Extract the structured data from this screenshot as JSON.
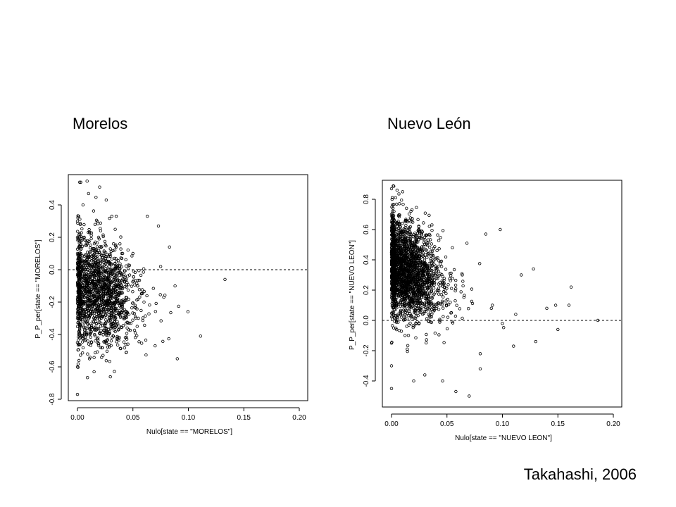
{
  "slide": {
    "title_left": "Morelos",
    "title_right": "Nuevo León",
    "citation": "Takahashi, 2006"
  },
  "chart_data": [
    {
      "type": "scatter",
      "title": "Morelos",
      "xlabel": "Nulo[state == \"MORELOS\"]",
      "ylabel": "P_P_per[state == \"MORELOS\"]",
      "xlim": [
        0.0,
        0.2
      ],
      "ylim": [
        -0.8,
        0.55
      ],
      "x_ticks": [
        "0.00",
        "0.05",
        "0.10",
        "0.15",
        "0.20"
      ],
      "y_ticks": [
        "-0.8",
        "-0.6",
        "-0.4",
        "-0.2",
        "0.0",
        "0.2",
        "0.4"
      ],
      "reference_line_y": 0.0,
      "cloud": {
        "x_center": 0.02,
        "x_spread": 0.014,
        "y_center": -0.14,
        "y_spread": 0.18,
        "y_trend": -2.0,
        "count": 1600
      },
      "points": [
        {
          "x": 0.002,
          "y": 0.54
        },
        {
          "x": 0.003,
          "y": 0.54
        },
        {
          "x": 0.01,
          "y": 0.47
        },
        {
          "x": 0.02,
          "y": 0.51
        },
        {
          "x": 0.026,
          "y": 0.43
        },
        {
          "x": 0.031,
          "y": 0.33
        },
        {
          "x": 0.035,
          "y": 0.33
        },
        {
          "x": 0.063,
          "y": 0.33
        },
        {
          "x": 0.073,
          "y": 0.27
        },
        {
          "x": 0.083,
          "y": 0.14
        },
        {
          "x": 0.075,
          "y": 0.02
        },
        {
          "x": 0.088,
          "y": -0.1
        },
        {
          "x": 0.133,
          "y": -0.06
        },
        {
          "x": 0.111,
          "y": -0.41
        },
        {
          "x": 0.09,
          "y": -0.55
        },
        {
          "x": 0.07,
          "y": -0.47
        },
        {
          "x": 0.0,
          "y": -0.77
        },
        {
          "x": 0.015,
          "y": -0.63
        },
        {
          "x": 0.0,
          "y": 0.3
        },
        {
          "x": 0.0,
          "y": 0.2
        },
        {
          "x": 0.0,
          "y": 0.1
        },
        {
          "x": 0.0,
          "y": -0.1
        },
        {
          "x": 0.0,
          "y": -0.3
        },
        {
          "x": 0.0,
          "y": -0.45
        },
        {
          "x": 0.0,
          "y": -0.6
        },
        {
          "x": 0.005,
          "y": 0.4
        },
        {
          "x": 0.04,
          "y": 0.1
        },
        {
          "x": 0.05,
          "y": 0.1
        },
        {
          "x": 0.055,
          "y": -0.3
        },
        {
          "x": 0.06,
          "y": -0.2
        }
      ]
    },
    {
      "type": "scatter",
      "title": "Nuevo León",
      "xlabel": "Nulo[state == \"NUEVO LEON\"]",
      "ylabel": "P_P_per[state == \"NUEVO LEON\"]",
      "xlim": [
        0.0,
        0.2
      ],
      "ylim": [
        -0.55,
        0.9
      ],
      "x_ticks": [
        "0.00",
        "0.05",
        "0.10",
        "0.15",
        "0.20"
      ],
      "y_ticks": [
        "-0.4",
        "-0.2",
        "0.0",
        "0.2",
        "0.4",
        "0.6",
        "0.8"
      ],
      "reference_line_y": 0.0,
      "cloud": {
        "x_center": 0.014,
        "x_spread": 0.014,
        "y_center": 0.33,
        "y_spread": 0.17,
        "y_trend": -3.2,
        "count": 2200
      },
      "points": [
        {
          "x": 0.0,
          "y": 0.87
        },
        {
          "x": 0.005,
          "y": 0.86
        },
        {
          "x": 0.01,
          "y": 0.85
        },
        {
          "x": 0.085,
          "y": 0.57
        },
        {
          "x": 0.098,
          "y": 0.6
        },
        {
          "x": 0.068,
          "y": 0.51
        },
        {
          "x": 0.128,
          "y": 0.34
        },
        {
          "x": 0.117,
          "y": 0.3
        },
        {
          "x": 0.162,
          "y": 0.22
        },
        {
          "x": 0.16,
          "y": 0.1
        },
        {
          "x": 0.15,
          "y": -0.06
        },
        {
          "x": 0.148,
          "y": 0.1
        },
        {
          "x": 0.186,
          "y": 0.0
        },
        {
          "x": 0.13,
          "y": -0.14
        },
        {
          "x": 0.11,
          "y": -0.17
        },
        {
          "x": 0.08,
          "y": -0.22
        },
        {
          "x": 0.08,
          "y": -0.32
        },
        {
          "x": 0.07,
          "y": -0.5
        },
        {
          "x": 0.058,
          "y": -0.47
        },
        {
          "x": 0.046,
          "y": -0.4
        },
        {
          "x": 0.0,
          "y": -0.45
        },
        {
          "x": 0.0,
          "y": -0.3
        },
        {
          "x": 0.0,
          "y": -0.15
        },
        {
          "x": 0.0,
          "y": 0.2
        },
        {
          "x": 0.0,
          "y": 0.5
        },
        {
          "x": 0.0,
          "y": 0.7
        },
        {
          "x": 0.14,
          "y": 0.08
        },
        {
          "x": 0.112,
          "y": 0.04
        },
        {
          "x": 0.1,
          "y": -0.02
        },
        {
          "x": 0.09,
          "y": 0.08
        },
        {
          "x": 0.02,
          "y": -0.4
        },
        {
          "x": 0.03,
          "y": -0.36
        }
      ]
    }
  ]
}
